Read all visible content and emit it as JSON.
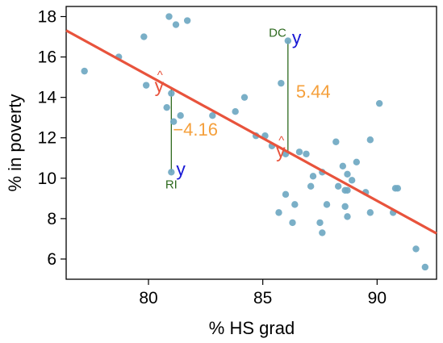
{
  "chart_data": {
    "type": "scatter",
    "xlabel": "% HS grad",
    "ylabel": "% in poverty",
    "xlim": [
      76.4,
      92.6
    ],
    "ylim": [
      5.0,
      18.5
    ],
    "xticks": [
      80,
      85,
      90
    ],
    "yticks": [
      6,
      8,
      10,
      12,
      14,
      16,
      18
    ],
    "xtick_labels": [
      "80",
      "85",
      "90"
    ],
    "ytick_labels": [
      "6",
      "8",
      "10",
      "12",
      "14",
      "16",
      "18"
    ],
    "grid": false,
    "colors": {
      "points": "#6fa8c2",
      "fit_line": "#e8533c",
      "residual_line": "#2e6a1f",
      "state_label": "#2e6a1f",
      "y_hat": "#e8533c",
      "y_obs": "#1a1ad6",
      "residual_value": "#f5a03c"
    },
    "regression": {
      "intercept": 64.68,
      "slope": -0.62
    },
    "points": [
      {
        "x": 77.2,
        "y": 15.3
      },
      {
        "x": 78.7,
        "y": 16.0
      },
      {
        "x": 79.8,
        "y": 17.0
      },
      {
        "x": 79.9,
        "y": 14.6
      },
      {
        "x": 80.9,
        "y": 18.0
      },
      {
        "x": 81.2,
        "y": 17.6
      },
      {
        "x": 81.7,
        "y": 17.8
      },
      {
        "x": 80.8,
        "y": 13.5
      },
      {
        "x": 81.0,
        "y": 14.2
      },
      {
        "x": 81.1,
        "y": 12.8
      },
      {
        "x": 81.4,
        "y": 13.1
      },
      {
        "x": 81.0,
        "y": 10.3
      },
      {
        "x": 82.8,
        "y": 13.1
      },
      {
        "x": 83.8,
        "y": 13.3
      },
      {
        "x": 84.2,
        "y": 14.0
      },
      {
        "x": 84.7,
        "y": 12.1
      },
      {
        "x": 85.1,
        "y": 12.1
      },
      {
        "x": 85.4,
        "y": 11.6
      },
      {
        "x": 85.8,
        "y": 14.7
      },
      {
        "x": 86.0,
        "y": 11.2
      },
      {
        "x": 86.1,
        "y": 16.8
      },
      {
        "x": 86.6,
        "y": 11.3
      },
      {
        "x": 86.9,
        "y": 11.2
      },
      {
        "x": 86.0,
        "y": 9.2
      },
      {
        "x": 86.4,
        "y": 8.7
      },
      {
        "x": 85.7,
        "y": 8.3
      },
      {
        "x": 86.3,
        "y": 7.8
      },
      {
        "x": 87.1,
        "y": 9.6
      },
      {
        "x": 87.2,
        "y": 10.1
      },
      {
        "x": 87.6,
        "y": 10.3
      },
      {
        "x": 87.8,
        "y": 8.7
      },
      {
        "x": 87.5,
        "y": 7.8
      },
      {
        "x": 87.6,
        "y": 7.3
      },
      {
        "x": 88.2,
        "y": 11.8
      },
      {
        "x": 88.5,
        "y": 10.6
      },
      {
        "x": 88.7,
        "y": 10.2
      },
      {
        "x": 88.3,
        "y": 9.6
      },
      {
        "x": 88.6,
        "y": 9.4
      },
      {
        "x": 88.7,
        "y": 9.4
      },
      {
        "x": 88.9,
        "y": 9.9
      },
      {
        "x": 89.1,
        "y": 10.8
      },
      {
        "x": 88.6,
        "y": 8.6
      },
      {
        "x": 88.7,
        "y": 8.1
      },
      {
        "x": 89.5,
        "y": 9.3
      },
      {
        "x": 89.7,
        "y": 11.9
      },
      {
        "x": 89.7,
        "y": 8.3
      },
      {
        "x": 90.1,
        "y": 13.7
      },
      {
        "x": 90.8,
        "y": 9.5
      },
      {
        "x": 90.9,
        "y": 9.5
      },
      {
        "x": 90.7,
        "y": 8.3
      },
      {
        "x": 91.7,
        "y": 6.5
      },
      {
        "x": 92.1,
        "y": 5.6
      }
    ],
    "annotations": [
      {
        "state": "DC",
        "x": 86.1,
        "y": 16.8,
        "yhat": 11.35,
        "residual": "5.44",
        "y_label": "y",
        "yhat_label": "y",
        "hat_symbol": "^"
      },
      {
        "state": "RI",
        "x": 81.0,
        "y": 10.3,
        "yhat": 14.46,
        "residual": "−4.16",
        "y_label": "y",
        "yhat_label": "y",
        "hat_symbol": "^"
      }
    ]
  }
}
